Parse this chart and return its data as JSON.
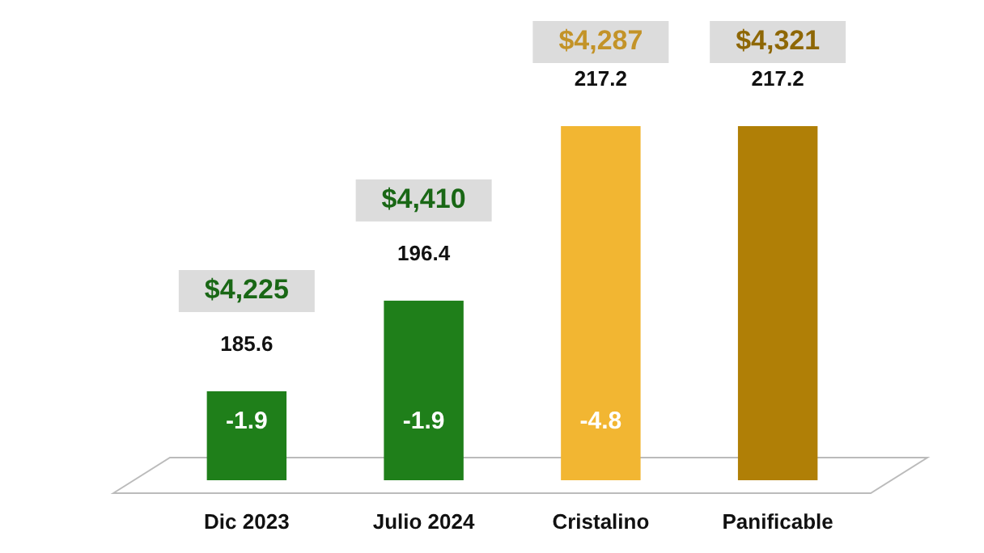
{
  "chart_data": {
    "type": "bar",
    "categories": [
      "Dic 2023",
      "Julio 2024",
      "Cristalino",
      "Panificable"
    ],
    "values": [
      185.6,
      196.4,
      217.2,
      217.2
    ],
    "colors": [
      "#1f7f1a",
      "#1f7f1a",
      "#f2b632",
      "#b07f06"
    ],
    "data_labels": true,
    "ylim": [
      175,
      217.2
    ],
    "tick_labels": "x",
    "annotations": [
      "$4,225",
      "$4,410",
      "$4,287",
      "$4,321",
      "-1.9",
      "-1.9",
      "-4.8"
    ]
  }
}
